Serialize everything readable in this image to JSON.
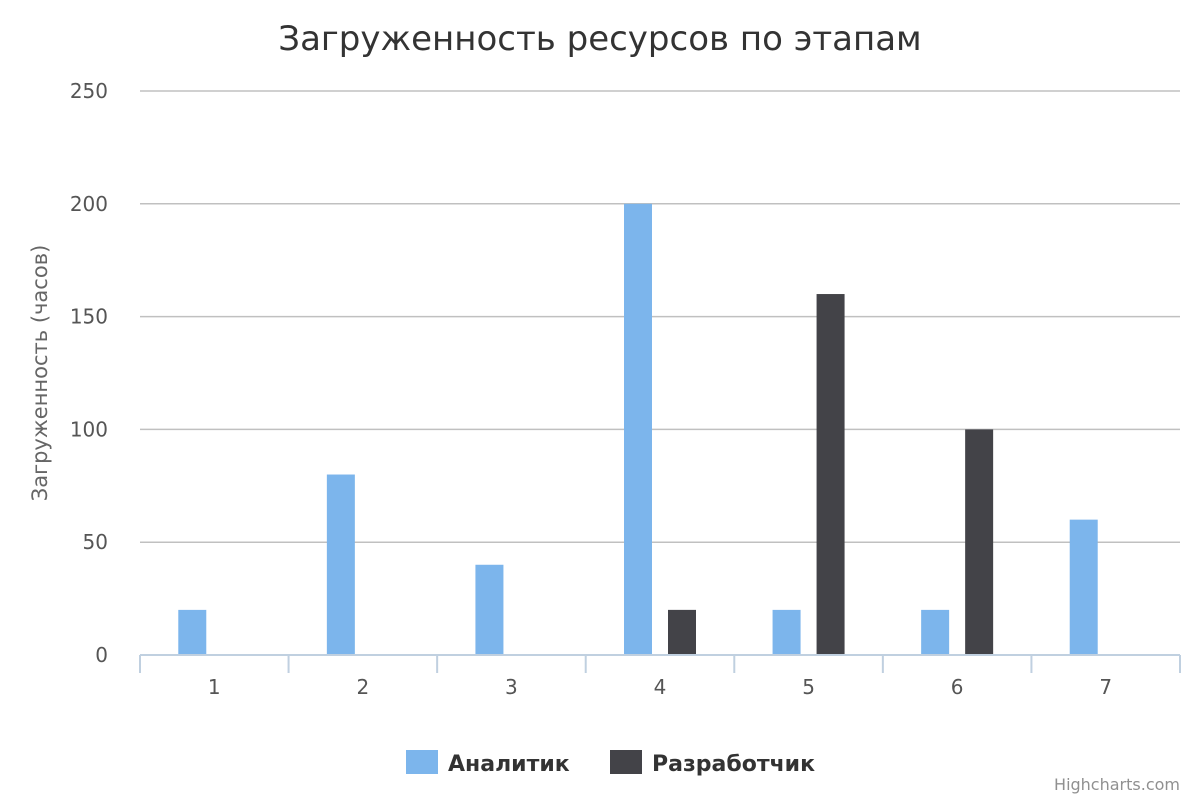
{
  "chart_data": {
    "type": "bar",
    "title": "Загруженность ресурсов по этапам",
    "ylabel": "Загруженность (часов)",
    "xlabel": "",
    "categories": [
      "1",
      "2",
      "3",
      "4",
      "5",
      "6",
      "7"
    ],
    "ylim": [
      0,
      250
    ],
    "yticks": [
      0,
      50,
      100,
      150,
      200,
      250
    ],
    "grid": true,
    "legend_position": "bottom-center",
    "series": [
      {
        "name": "Аналитик",
        "color": "#7cb5ec",
        "values": [
          20,
          80,
          40,
          200,
          20,
          20,
          60
        ]
      },
      {
        "name": "Разработчик",
        "color": "#434348",
        "values": [
          0,
          0,
          0,
          20,
          160,
          100,
          0
        ]
      }
    ]
  },
  "credits": "Highcharts.com"
}
